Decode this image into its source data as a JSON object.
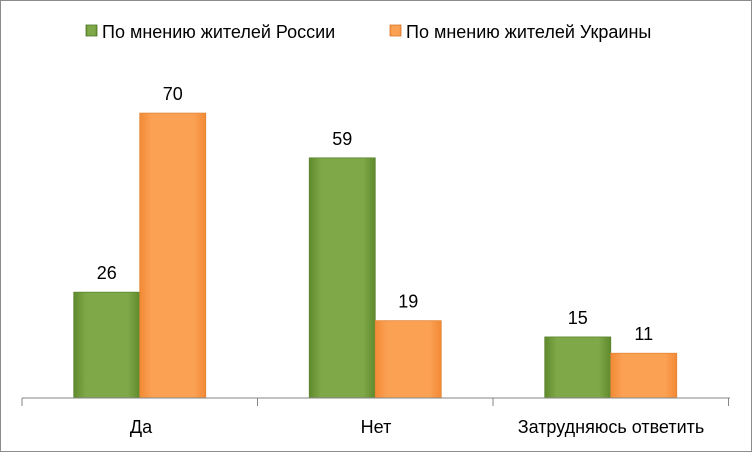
{
  "chart_data": {
    "type": "bar",
    "categories": [
      "Да",
      "Нет",
      "Затрудняюсь ответить"
    ],
    "series": [
      {
        "name": "По мнению жителей России",
        "values": [
          26,
          59,
          15
        ],
        "color": "#77a23f"
      },
      {
        "name": "По мнению жителей Украины",
        "values": [
          70,
          19,
          11
        ],
        "color": "#f79646"
      }
    ],
    "ylim": [
      0,
      70
    ],
    "grid": false,
    "legend_position": "top"
  }
}
